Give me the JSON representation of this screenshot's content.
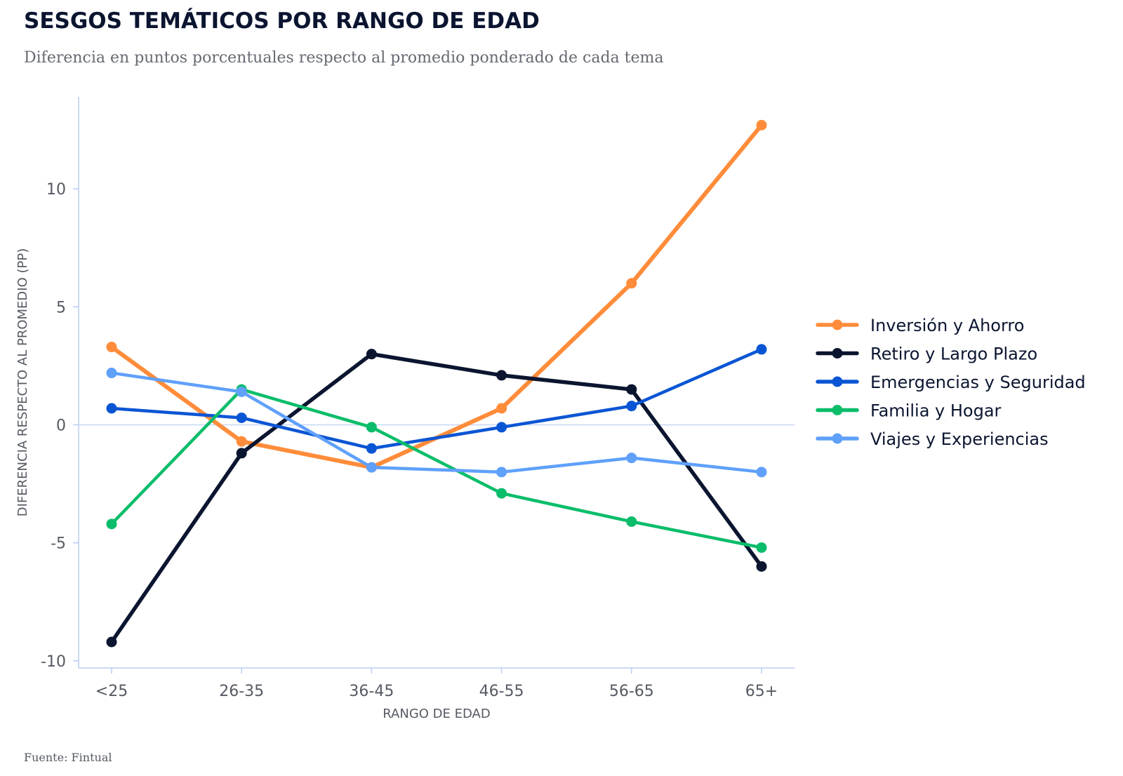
{
  "header": {
    "title": "SESGOS TEMÁTICOS POR RANGO DE EDAD",
    "subtitle": "Diferencia en puntos porcentuales respecto al promedio ponderado de cada tema"
  },
  "footer": {
    "source": "Fuente: Fintual"
  },
  "chart_data": {
    "type": "line",
    "title": "SESGOS TEMÁTICOS POR RANGO DE EDAD",
    "subtitle": "Diferencia en puntos porcentuales respecto al promedio ponderado de cada tema",
    "xlabel": "RANGO DE EDAD",
    "ylabel": "DIFERENCIA RESPECTO AL PROMEDIO (PP)",
    "categories": [
      "<25",
      "26-35",
      "36-45",
      "46-55",
      "56-65",
      "65+"
    ],
    "ylim": [
      -10.3,
      13.9
    ],
    "yticks": [
      10,
      5,
      0,
      -5,
      -10
    ],
    "ytick_labels": [
      "10",
      "5",
      "0",
      "-5",
      "-10"
    ],
    "zero_line": true,
    "grid": false,
    "legend_position": "right",
    "series": [
      {
        "name": "Inversión y Ahorro",
        "color": "#ff8c3a",
        "values": [
          3.3,
          -0.7,
          -1.8,
          0.7,
          6.0,
          12.7
        ]
      },
      {
        "name": "Retiro y Largo Plazo",
        "color": "#0b1530",
        "values": [
          -9.2,
          -1.2,
          3.0,
          2.1,
          1.5,
          -6.0
        ]
      },
      {
        "name": "Emergencias y Seguridad",
        "color": "#0a55d4",
        "values": [
          0.7,
          0.3,
          -1.0,
          -0.1,
          0.8,
          3.2
        ]
      },
      {
        "name": "Familia y Hogar",
        "color": "#0bbd6a",
        "values": [
          -4.2,
          1.5,
          -0.1,
          -2.9,
          -4.1,
          -5.2
        ]
      },
      {
        "name": "Viajes y Experiencias",
        "color": "#5fa0fb",
        "values": [
          2.2,
          1.4,
          -1.8,
          -2.0,
          -1.4,
          -2.0
        ]
      }
    ]
  }
}
